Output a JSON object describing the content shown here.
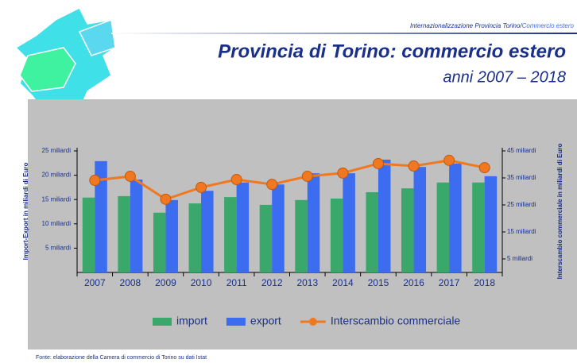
{
  "chart_data": {
    "type": "bar",
    "header": "Internazionalizzazione Provincia Torino/",
    "header_highlight": "Commercio estero",
    "title": "Provincia di Torino: commercio estero",
    "subtitle": "anni 2007 – 2018",
    "ylabel": "Import-Export in miliardi di Euro",
    "y2label": "Interscambio commerciale in miliardi di Euro",
    "source": "Fonte: elaborazione della Camera di commercio di Torino su dati Istat",
    "categories": [
      "2007",
      "2008",
      "2009",
      "2010",
      "2011",
      "2012",
      "2013",
      "2014",
      "2015",
      "2016",
      "2017",
      "2018"
    ],
    "series": [
      {
        "name": "import",
        "type": "bar",
        "color": "#3aa86b",
        "values": [
          15.4,
          15.7,
          12.3,
          14.2,
          15.5,
          13.9,
          14.9,
          15.2,
          16.5,
          17.3,
          18.5,
          18.5
        ]
      },
      {
        "name": "export",
        "type": "bar",
        "color": "#3c6cf0",
        "values": [
          22.9,
          19.1,
          14.9,
          16.8,
          18.5,
          18.1,
          20.4,
          20.4,
          23.2,
          21.7,
          22.4,
          19.8
        ]
      },
      {
        "name": "Interscambio commerciale",
        "type": "line",
        "axis": "y2",
        "color": "#f07820",
        "values": [
          34.1,
          35.6,
          27.1,
          31.5,
          34.4,
          32.6,
          35.6,
          36.8,
          40.3,
          39.4,
          41.5,
          38.8
        ]
      }
    ],
    "ylim": [
      0,
      25
    ],
    "yticks": [
      {
        "value": 5,
        "label": "5 miliardi"
      },
      {
        "value": 10,
        "label": "10 miliardi"
      },
      {
        "value": 15,
        "label": "15 miliardi"
      },
      {
        "value": 20,
        "label": "20 miliardi"
      },
      {
        "value": 25,
        "label": "25 miliardi"
      }
    ],
    "y2lim": [
      0,
      45
    ],
    "y2ticks": [
      {
        "value": 5,
        "label": "5 miliardi"
      },
      {
        "value": 15,
        "label": "15 miliardi"
      },
      {
        "value": 25,
        "label": "25 miliardi"
      },
      {
        "value": 35,
        "label": "35 miliardi"
      },
      {
        "value": 45,
        "label": "45 miliardi"
      }
    ],
    "legend": "bottom"
  }
}
